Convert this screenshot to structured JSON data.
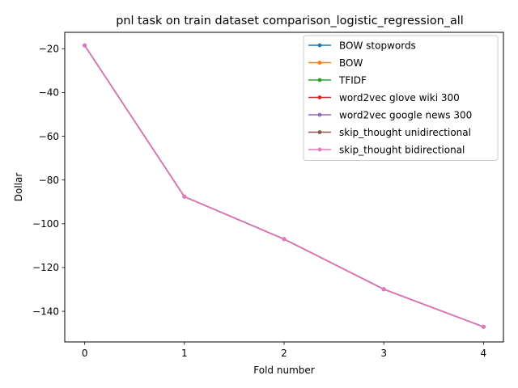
{
  "chart_data": {
    "type": "line",
    "title": "pnl task on train dataset comparison_logistic_regression_all",
    "xlabel": "Fold number",
    "ylabel": "Dollar",
    "x": [
      0,
      1,
      2,
      3,
      4
    ],
    "xticks": [
      0,
      1,
      2,
      3,
      4
    ],
    "yticks": [
      -140,
      -120,
      -100,
      -80,
      -60,
      -40,
      -20
    ],
    "xlim": [
      -0.2,
      4.2
    ],
    "ylim": [
      -154,
      -12.5
    ],
    "grid": false,
    "legend_position": "upper right",
    "series": [
      {
        "name": "BOW stopwords",
        "color": "#1f77b4",
        "values": [
          -18.5,
          -87.6,
          -107.0,
          -129.9,
          -147.1
        ]
      },
      {
        "name": "BOW",
        "color": "#ff7f0e",
        "values": [
          -18.5,
          -87.6,
          -107.0,
          -129.9,
          -147.1
        ]
      },
      {
        "name": "TFIDF",
        "color": "#2ca02c",
        "values": [
          -18.5,
          -87.6,
          -107.0,
          -129.9,
          -147.1
        ]
      },
      {
        "name": "word2vec glove wiki 300",
        "color": "#d62728",
        "values": [
          -18.5,
          -87.6,
          -107.0,
          -129.9,
          -147.1
        ]
      },
      {
        "name": "word2vec google news 300",
        "color": "#9467bd",
        "values": [
          -18.5,
          -87.6,
          -107.0,
          -129.9,
          -147.1
        ]
      },
      {
        "name": "skip_thought unidirectional",
        "color": "#8c564b",
        "values": [
          -18.5,
          -87.6,
          -107.0,
          -129.9,
          -147.1
        ]
      },
      {
        "name": "skip_thought bidirectional",
        "color": "#e377c2",
        "values": [
          -18.5,
          -87.6,
          -107.0,
          -129.9,
          -147.1
        ]
      }
    ]
  }
}
